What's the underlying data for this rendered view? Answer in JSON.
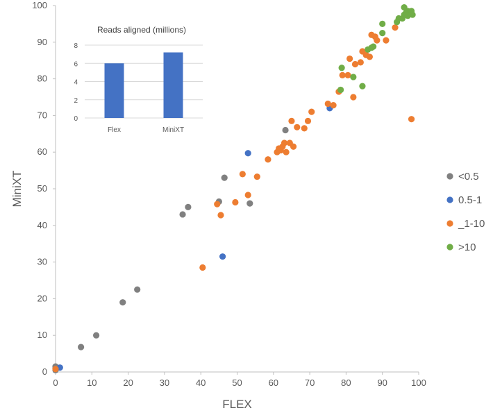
{
  "chart_data": [
    {
      "type": "scatter",
      "title": "",
      "xlabel": "FLEX",
      "ylabel": "MiniXT",
      "xlim": [
        0,
        100
      ],
      "ylim": [
        0,
        100
      ],
      "xticks": [
        0,
        10,
        20,
        30,
        40,
        50,
        60,
        70,
        80,
        90,
        100
      ],
      "yticks": [
        0,
        10,
        20,
        30,
        40,
        50,
        60,
        70,
        80,
        90,
        100
      ],
      "grid": false,
      "legend": "right",
      "series": [
        {
          "name": "<0.5",
          "color": "#808080",
          "points": [
            [
              0,
              1.5
            ],
            [
              0,
              1
            ],
            [
              0,
              0.5
            ],
            [
              7,
              6.8
            ],
            [
              11.2,
              10
            ],
            [
              18.5,
              19
            ],
            [
              22.5,
              22.5
            ],
            [
              35,
              43
            ],
            [
              36.5,
              45
            ],
            [
              45,
              46.5
            ],
            [
              46.5,
              53
            ],
            [
              53.5,
              46
            ],
            [
              63.3,
              66
            ]
          ]
        },
        {
          "name": "0.5-1",
          "color": "#4472C4",
          "points": [
            [
              1.2,
              1.2
            ],
            [
              46,
              31.5
            ],
            [
              53,
              59.7
            ],
            [
              75.5,
              72
            ]
          ]
        },
        {
          "name": "_1-10",
          "color": "#ED7D31",
          "points": [
            [
              0,
              0.8
            ],
            [
              40.5,
              28.5
            ],
            [
              44.5,
              45.8
            ],
            [
              45.5,
              42.8
            ],
            [
              49.5,
              46.3
            ],
            [
              51.5,
              54
            ],
            [
              53,
              48.3
            ],
            [
              55.5,
              53.3
            ],
            [
              58.5,
              58
            ],
            [
              61,
              60
            ],
            [
              61.5,
              61
            ],
            [
              62,
              60.5
            ],
            [
              62.5,
              61.5
            ],
            [
              63,
              62.5
            ],
            [
              63.5,
              60
            ],
            [
              64.5,
              62.5
            ],
            [
              65,
              68.5
            ],
            [
              65.5,
              61.5
            ],
            [
              66.5,
              66.8
            ],
            [
              68.5,
              66.5
            ],
            [
              69.5,
              68.5
            ],
            [
              70.5,
              71
            ],
            [
              75,
              73.2
            ],
            [
              76.5,
              72.8
            ],
            [
              78,
              76.5
            ],
            [
              79,
              81
            ],
            [
              80.5,
              81
            ],
            [
              81,
              85.5
            ],
            [
              82,
              75
            ],
            [
              82.5,
              84
            ],
            [
              84,
              84.5
            ],
            [
              84.5,
              87.5
            ],
            [
              85.5,
              86.5
            ],
            [
              86.5,
              86
            ],
            [
              87,
              92
            ],
            [
              88,
              91.5
            ],
            [
              88.5,
              90.5
            ],
            [
              91,
              90.5
            ],
            [
              93.5,
              94
            ],
            [
              98,
              69
            ]
          ]
        },
        {
          "name": ">10",
          "color": "#70AD47",
          "points": [
            [
              78.5,
              77
            ],
            [
              78.8,
              83
            ],
            [
              82,
              80.5
            ],
            [
              84.5,
              78
            ],
            [
              86,
              88
            ],
            [
              87,
              88.5
            ],
            [
              87.5,
              88.8
            ],
            [
              90,
              92.5
            ],
            [
              90,
              95
            ],
            [
              94,
              95.5
            ],
            [
              94.5,
              96.5
            ],
            [
              95.5,
              96.5
            ],
            [
              96,
              97.5
            ],
            [
              96,
              99.5
            ],
            [
              96.5,
              98
            ],
            [
              97,
              98.5
            ],
            [
              97.5,
              97.8
            ],
            [
              98,
              98.5
            ],
            [
              98.3,
              97.5
            ],
            [
              97,
              97.2
            ]
          ]
        }
      ]
    },
    {
      "type": "bar",
      "title": "Reads aligned (millions)",
      "categories": [
        "Flex",
        "MiniXT"
      ],
      "values": [
        6.0,
        7.2
      ],
      "ylim": [
        0,
        8
      ],
      "yticks": [
        0,
        2,
        4,
        6,
        8
      ],
      "grid": true,
      "color": "#4472C4"
    }
  ]
}
